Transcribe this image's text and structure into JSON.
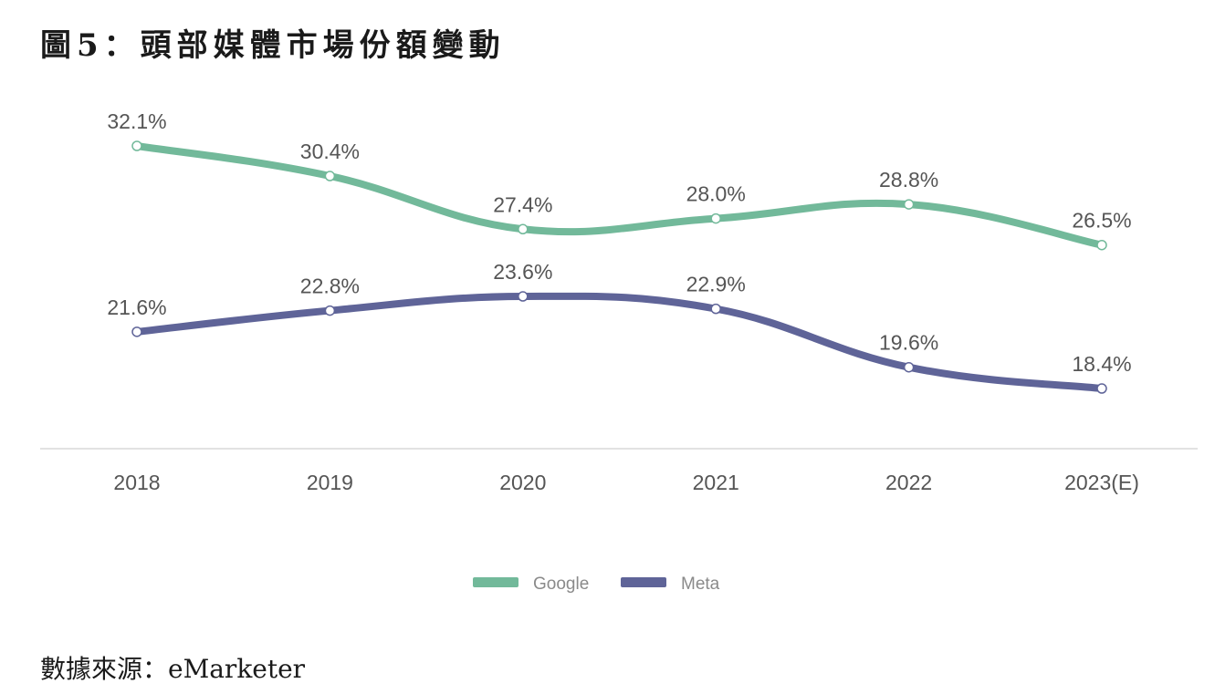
{
  "title": "圖5：頭部媒體市場份額變動",
  "source": "數據來源：eMarketer",
  "chart_data": {
    "type": "line",
    "categories": [
      "2018",
      "2019",
      "2020",
      "2021",
      "2022",
      "2023(E)"
    ],
    "series": [
      {
        "name": "Google",
        "color": "#72b99a",
        "values": [
          32.1,
          30.4,
          27.4,
          28.0,
          28.8,
          26.5
        ],
        "labels": [
          "32.1%",
          "30.4%",
          "27.4%",
          "28.0%",
          "28.8%",
          "26.5%"
        ]
      },
      {
        "name": "Meta",
        "color": "#5f6498",
        "values": [
          21.6,
          22.8,
          23.6,
          22.9,
          19.6,
          18.4
        ],
        "labels": [
          "21.6%",
          "22.8%",
          "23.6%",
          "22.9%",
          "19.6%",
          "18.4%"
        ]
      }
    ],
    "ylabel": "",
    "xlabel": "",
    "ylim": [
      15.0,
      36.0
    ],
    "grid": false,
    "legend_position": "bottom-center",
    "smooth": true
  }
}
